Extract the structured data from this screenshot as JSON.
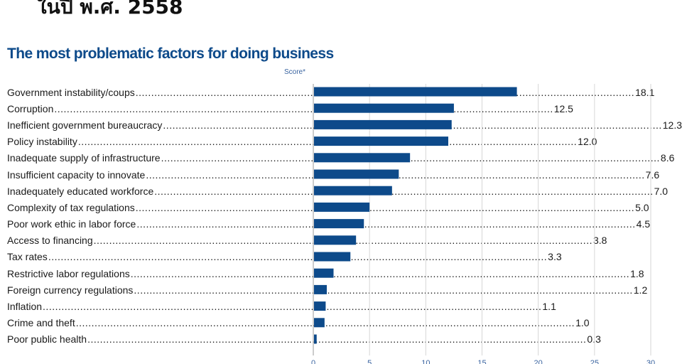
{
  "header": {
    "text": "ในปี พ.ศ. 2558"
  },
  "chart_data": {
    "type": "bar",
    "orientation": "horizontal",
    "title": "The most problematic factors for doing business",
    "value_label": "Score*",
    "xlim": [
      0,
      30
    ],
    "xticks": [
      0,
      5,
      10,
      15,
      20,
      25,
      30
    ],
    "grid": true,
    "bar_color": "#0d4a8a",
    "categories": [
      "Government instability/coups",
      "Corruption",
      "Inefficient government bureaucracy",
      "Policy instability",
      "Inadequate supply of infrastructure",
      "Insufficient capacity to innovate",
      "Inadequately educated workforce",
      "Complexity of tax regulations",
      "Poor work ethic in labor force",
      "Access to financing",
      "Tax rates",
      "Restrictive labor regulations",
      "Foreign currency regulations",
      "Inflation",
      "Crime and theft",
      "Poor public health"
    ],
    "values": [
      18.1,
      12.5,
      12.3,
      12.0,
      8.6,
      7.6,
      7.0,
      5.0,
      4.5,
      3.8,
      3.3,
      1.8,
      1.2,
      1.1,
      1.0,
      0.3
    ],
    "value_labels": [
      "18.1",
      "12.5",
      "12.3",
      "12.0",
      "8.6",
      "7.6",
      "7.0",
      "5.0",
      "4.5",
      "3.8",
      "3.3",
      "1.8",
      "1.2",
      "1.1",
      "1.0",
      "0.3"
    ]
  }
}
